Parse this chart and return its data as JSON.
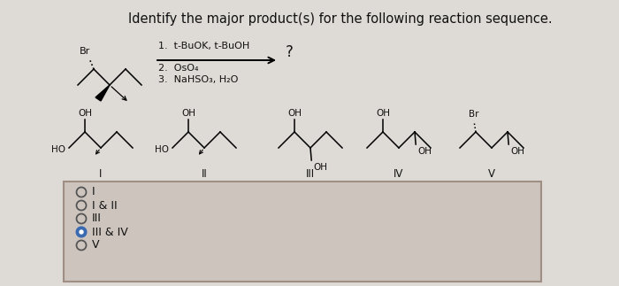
{
  "title": "Identify the major product(s) for the following reaction sequence.",
  "title_fontsize": 10.5,
  "bg_color": "#cdc5bd",
  "upper_bg_color": "#dedad5",
  "reaction_conditions_line1": "1.  t-BuOK, t-BuOH",
  "reaction_conditions_line2": "2.  OsO₄",
  "reaction_conditions_line3": "3.  NaHSO₃, H₂O",
  "question_mark": "?",
  "roman_numerals": [
    "I",
    "II",
    "III",
    "IV",
    "V"
  ],
  "choices": [
    "I",
    "I & II",
    "III",
    "III & IV",
    "V"
  ],
  "selected_choice": 3,
  "font_color": "#111111",
  "box_edge_color": "#9e8e84"
}
